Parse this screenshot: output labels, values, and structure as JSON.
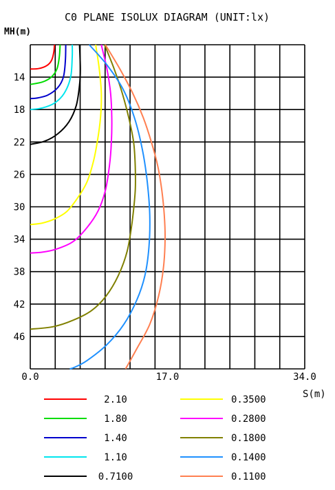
{
  "chart_data": {
    "type": "line",
    "title": "C0 PLANE ISOLUX DIAGRAM (UNIT:lx)",
    "ylabel": "MH(m)",
    "xlabel": "S(m)",
    "x_ticks": [
      "0.0",
      "17.0",
      "34.0"
    ],
    "y_ticks": [
      "14",
      "18",
      "22",
      "26",
      "30",
      "34",
      "38",
      "42",
      "46"
    ],
    "xlim": [
      0,
      34
    ],
    "ylim": [
      10,
      50
    ],
    "y_inverted": true,
    "grid": true,
    "grid_columns": 11,
    "grid_rows": 10,
    "legend_placement": "bottom",
    "series": [
      {
        "name": "2.10",
        "color": "#ff0000",
        "points": [
          [
            3.0,
            10.0
          ],
          [
            2.9,
            11.0
          ],
          [
            2.6,
            12.0
          ],
          [
            2.0,
            12.6
          ],
          [
            1.0,
            12.95
          ],
          [
            0.0,
            13.0
          ]
        ]
      },
      {
        "name": "1.80",
        "color": "#00dd00",
        "points": [
          [
            3.7,
            10.0
          ],
          [
            3.6,
            11.5
          ],
          [
            3.3,
            13.0
          ],
          [
            2.6,
            14.0
          ],
          [
            1.5,
            14.6
          ],
          [
            0.0,
            14.9
          ]
        ]
      },
      {
        "name": "1.40",
        "color": "#0000cc",
        "points": [
          [
            4.4,
            10.0
          ],
          [
            4.35,
            12.0
          ],
          [
            4.1,
            14.0
          ],
          [
            3.4,
            15.3
          ],
          [
            2.2,
            16.2
          ],
          [
            1.0,
            16.55
          ],
          [
            0.0,
            16.65
          ]
        ]
      },
      {
        "name": "1.10",
        "color": "#00e5ee",
        "points": [
          [
            5.2,
            10.0
          ],
          [
            5.2,
            11.5
          ],
          [
            5.0,
            14.0
          ],
          [
            4.2,
            16.0
          ],
          [
            3.0,
            17.2
          ],
          [
            1.5,
            17.8
          ],
          [
            0.0,
            18.0
          ]
        ]
      },
      {
        "name": "0.7100",
        "color": "#000000",
        "points": [
          [
            6.1,
            10.0
          ],
          [
            6.2,
            13.0
          ],
          [
            6.1,
            15.0
          ],
          [
            5.7,
            17.5
          ],
          [
            4.8,
            19.5
          ],
          [
            3.4,
            21.0
          ],
          [
            1.8,
            21.9
          ],
          [
            0.0,
            22.3
          ]
        ]
      },
      {
        "name": "0.3500",
        "color": "#ffff00",
        "points": [
          [
            8.1,
            10.0
          ],
          [
            8.55,
            13.0
          ],
          [
            8.8,
            16.0
          ],
          [
            8.7,
            19.0
          ],
          [
            8.3,
            22.0
          ],
          [
            7.8,
            24.5
          ],
          [
            7.0,
            27.0
          ],
          [
            5.8,
            29.0
          ],
          [
            4.5,
            30.6
          ],
          [
            3.0,
            31.5
          ],
          [
            1.5,
            32.0
          ],
          [
            0.0,
            32.2
          ]
        ]
      },
      {
        "name": "0.2800",
        "color": "#ff00ff",
        "points": [
          [
            8.8,
            10.0
          ],
          [
            9.5,
            13.0
          ],
          [
            9.95,
            16.0
          ],
          [
            10.1,
            19.0
          ],
          [
            10.05,
            22.0
          ],
          [
            9.8,
            25.0
          ],
          [
            9.3,
            28.0
          ],
          [
            8.4,
            30.5
          ],
          [
            7.0,
            32.6
          ],
          [
            5.3,
            34.3
          ],
          [
            3.3,
            35.2
          ],
          [
            1.5,
            35.6
          ],
          [
            0.0,
            35.7
          ]
        ]
      },
      {
        "name": "0.1800",
        "color": "#808000",
        "points": [
          [
            9.2,
            10.0
          ],
          [
            10.4,
            13.0
          ],
          [
            11.4,
            16.0
          ],
          [
            12.2,
            19.0
          ],
          [
            12.8,
            22.0
          ],
          [
            13.0,
            25.0
          ],
          [
            13.0,
            28.0
          ],
          [
            12.6,
            32.0
          ],
          [
            12.0,
            35.5
          ],
          [
            10.9,
            38.5
          ],
          [
            9.4,
            41.0
          ],
          [
            7.6,
            42.8
          ],
          [
            5.3,
            44.0
          ],
          [
            2.8,
            44.8
          ],
          [
            0.0,
            45.1
          ]
        ]
      },
      {
        "name": "0.1400",
        "color": "#1e90ff",
        "points": [
          [
            7.3,
            10.0
          ],
          [
            9.5,
            12.5
          ],
          [
            11.5,
            15.5
          ],
          [
            12.9,
            19.0
          ],
          [
            13.9,
            23.0
          ],
          [
            14.5,
            27.0
          ],
          [
            14.8,
            31.0
          ],
          [
            14.7,
            35.0
          ],
          [
            14.2,
            38.5
          ],
          [
            13.2,
            41.5
          ],
          [
            11.6,
            44.5
          ],
          [
            9.5,
            47.0
          ],
          [
            7.0,
            49.0
          ],
          [
            5.5,
            49.8
          ],
          [
            4.9,
            50.0
          ]
        ]
      },
      {
        "name": "0.1100",
        "color": "#ff7f50",
        "points": [
          [
            9.3,
            10.0
          ],
          [
            11.1,
            13.0
          ],
          [
            12.7,
            16.0
          ],
          [
            14.0,
            19.0
          ],
          [
            15.0,
            22.0
          ],
          [
            15.8,
            25.0
          ],
          [
            16.3,
            28.0
          ],
          [
            16.6,
            31.0
          ],
          [
            16.7,
            34.0
          ],
          [
            16.5,
            37.5
          ],
          [
            15.9,
            41.0
          ],
          [
            14.8,
            44.5
          ],
          [
            13.2,
            47.5
          ],
          [
            12.2,
            49.3
          ],
          [
            11.8,
            50.0
          ]
        ]
      }
    ]
  }
}
